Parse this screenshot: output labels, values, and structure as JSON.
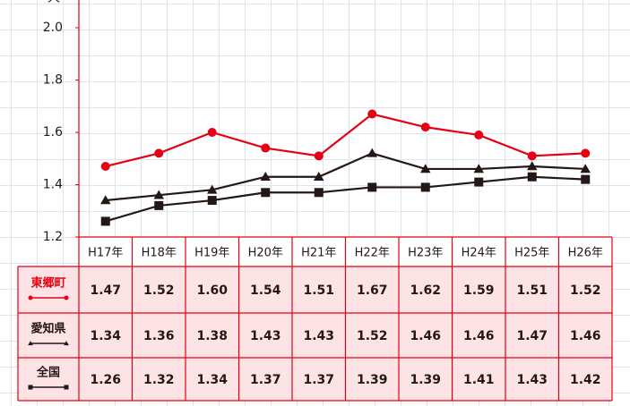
{
  "chart_data": {
    "type": "line",
    "ylabel": "人",
    "categories": [
      "H17年",
      "H18年",
      "H19年",
      "H20年",
      "H21年",
      "H22年",
      "H23年",
      "H24年",
      "H25年",
      "H26年"
    ],
    "series": [
      {
        "name": "東郷町",
        "color": "#e60012",
        "marker": "circle",
        "values": [
          1.47,
          1.52,
          1.6,
          1.54,
          1.51,
          1.67,
          1.62,
          1.59,
          1.51,
          1.52
        ],
        "value_labels": [
          "1.47",
          "1.52",
          "1.60",
          "1.54",
          "1.51",
          "1.67",
          "1.62",
          "1.59",
          "1.51",
          "1.52"
        ]
      },
      {
        "name": "愛知県",
        "color": "#231815",
        "marker": "triangle",
        "values": [
          1.34,
          1.36,
          1.38,
          1.43,
          1.43,
          1.52,
          1.46,
          1.46,
          1.47,
          1.46
        ]
      },
      {
        "name": "全国",
        "color": "#231815",
        "marker": "square",
        "values": [
          1.26,
          1.32,
          1.34,
          1.37,
          1.37,
          1.39,
          1.39,
          1.41,
          1.43,
          1.42
        ]
      }
    ],
    "ylim": [
      1.2,
      2.1
    ],
    "yticks": [
      1.2,
      1.4,
      1.6,
      1.8,
      {
        "value": 2,
        "label": "2.0"
      }
    ]
  }
}
